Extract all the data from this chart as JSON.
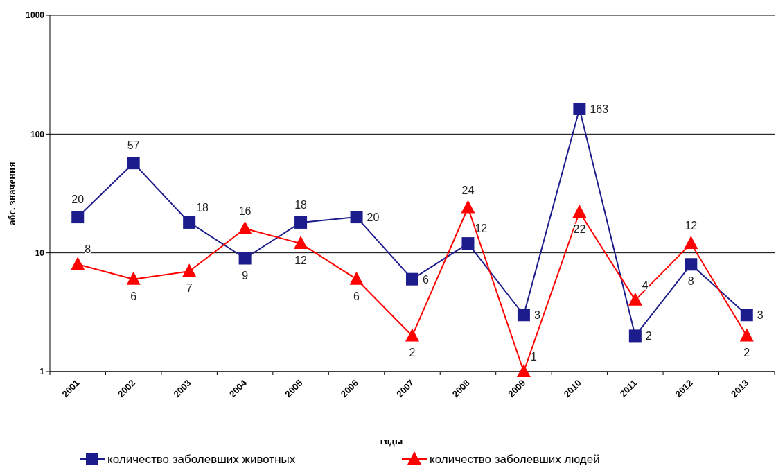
{
  "chart_data": {
    "type": "line",
    "xlabel": "годы",
    "ylabel": "абс. значения",
    "categories": [
      "2001",
      "2002",
      "2003",
      "2004",
      "2005",
      "2006",
      "2007",
      "2008",
      "2009",
      "2010",
      "2011",
      "2012",
      "2013"
    ],
    "series": [
      {
        "name": "количество заболевших животных",
        "color": "#1c1c8c",
        "marker": "square",
        "values": [
          20,
          57,
          18,
          9,
          18,
          20,
          6,
          12,
          3,
          163,
          2,
          8,
          3
        ]
      },
      {
        "name": "количество заболевших людей",
        "color": "#ff0000",
        "marker": "triangle",
        "values": [
          8,
          6,
          7,
          16,
          12,
          6,
          2,
          24,
          1,
          22,
          4,
          12,
          2
        ]
      }
    ],
    "log": true,
    "ylim": [
      1,
      1000
    ],
    "yticks": [
      1,
      10,
      100,
      1000
    ],
    "grid": "y",
    "legend": "bottom",
    "data_labels": true
  }
}
